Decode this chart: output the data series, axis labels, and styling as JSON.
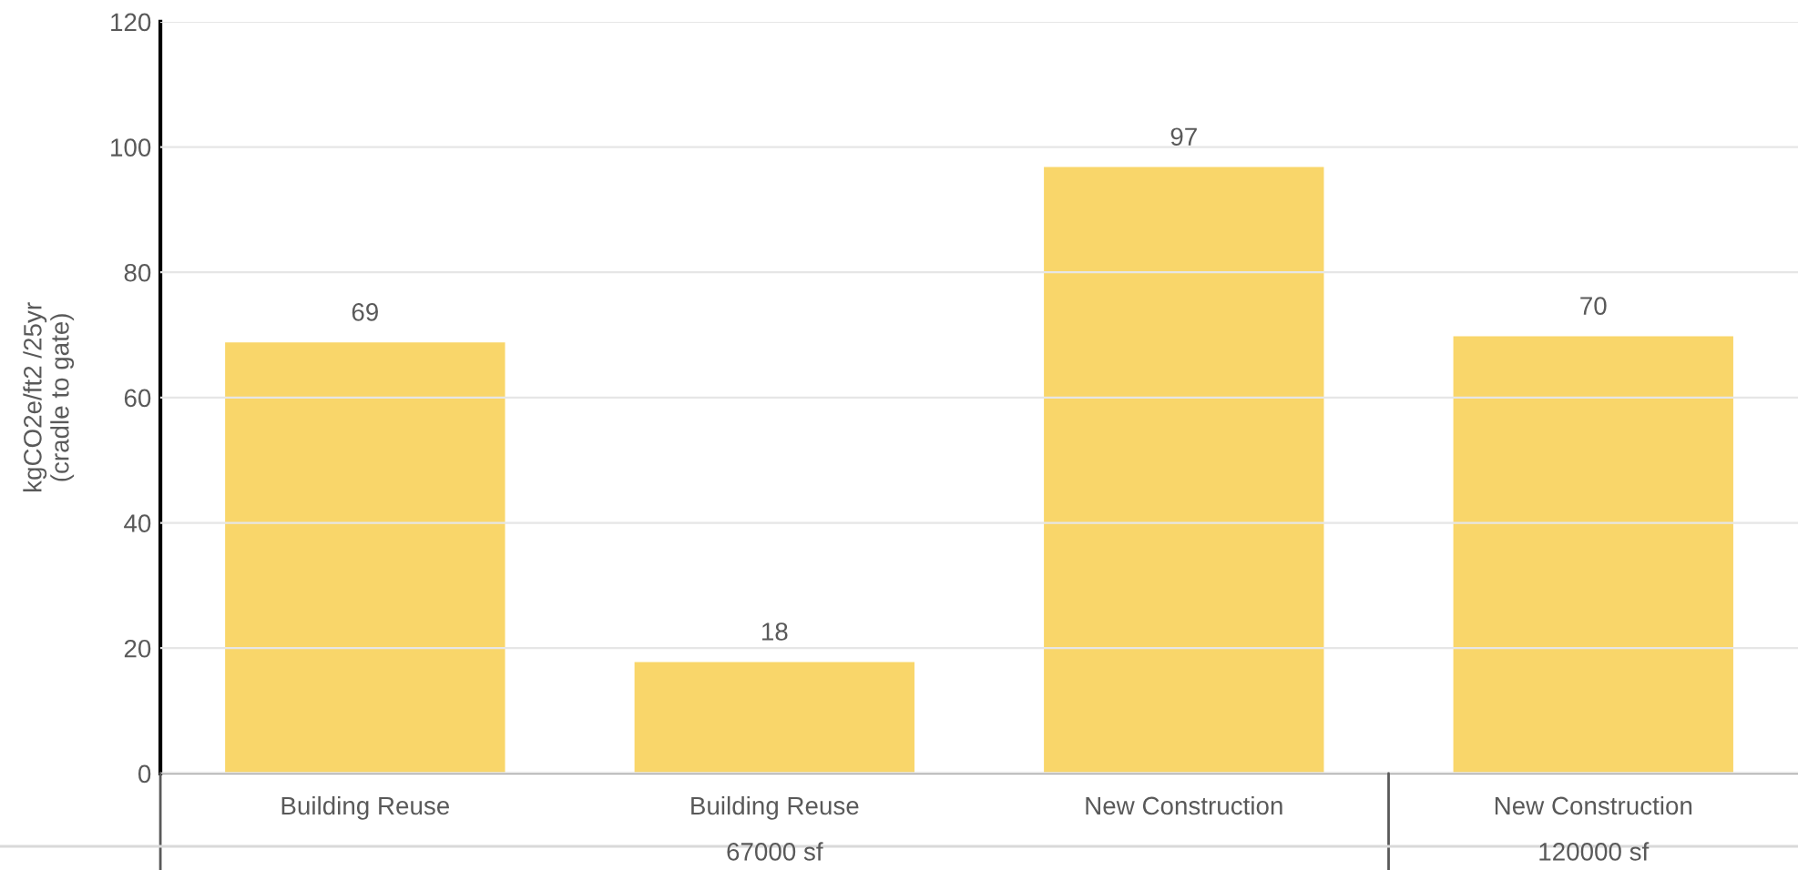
{
  "chart_data": {
    "type": "bar",
    "ylabel": "kgCO2e/ft2 /25yr\n(cradle to gate)",
    "categories": [
      "Building Reuse",
      "Building Reuse",
      "New Construction",
      "New Construction"
    ],
    "values": [
      69,
      18,
      97,
      70
    ],
    "color": "#f9d66a",
    "ylim": [
      0,
      120
    ],
    "yticks": [
      0,
      20,
      40,
      60,
      80,
      100,
      120
    ],
    "grid": "y",
    "data_labels": true,
    "annotations": [
      "67000 sf",
      "120000 sf"
    ]
  }
}
